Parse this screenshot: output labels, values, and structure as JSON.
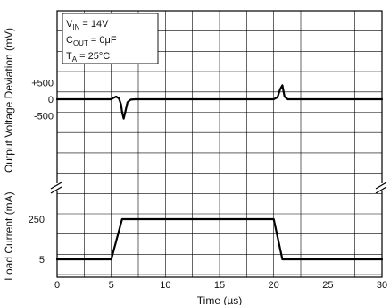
{
  "chart_data": {
    "type": "line",
    "x_axis": {
      "label": "Time (µs)",
      "range": [
        0,
        30
      ],
      "ticks": [
        "0",
        "5",
        "10",
        "15",
        "20",
        "25",
        "30"
      ],
      "grid": true
    },
    "panels": [
      {
        "name": "voltage",
        "ylabel": "Output Voltage Deviation (mV)",
        "ytick_labels": [
          "+500",
          "0",
          "-500"
        ],
        "ytick_values": [
          500,
          0,
          -500
        ],
        "conditions": [
          {
            "main": "V",
            "sub": "IN",
            "rest": " = 14V"
          },
          {
            "main": "C",
            "sub": "OUT",
            "rest": " = 0μF"
          },
          {
            "main": "T",
            "sub": "A",
            "rest": " = 25°C"
          }
        ],
        "series": [
          {
            "x": [
              0,
              5.0,
              5.2,
              5.45,
              5.7,
              5.9,
              6.0,
              6.15,
              6.3,
              6.5,
              6.8,
              7.2,
              20.0,
              20.35,
              20.6,
              20.8,
              21.0,
              21.3,
              30
            ],
            "y": [
              0,
              0,
              40,
              80,
              30,
              -150,
              -380,
              -580,
              -380,
              -90,
              -10,
              0,
              0,
              60,
              300,
              420,
              80,
              0,
              0
            ]
          }
        ]
      },
      {
        "name": "current",
        "ylabel": "Load Current (mA)",
        "ytick_labels": [
          "250",
          "5"
        ],
        "ytick_values": [
          250,
          5
        ],
        "series": [
          {
            "x": [
              0,
              5.0,
              6.0,
              20.0,
              20.8,
              30
            ],
            "y": [
              5,
              5,
              250,
              250,
              5,
              5
            ]
          }
        ]
      }
    ]
  }
}
